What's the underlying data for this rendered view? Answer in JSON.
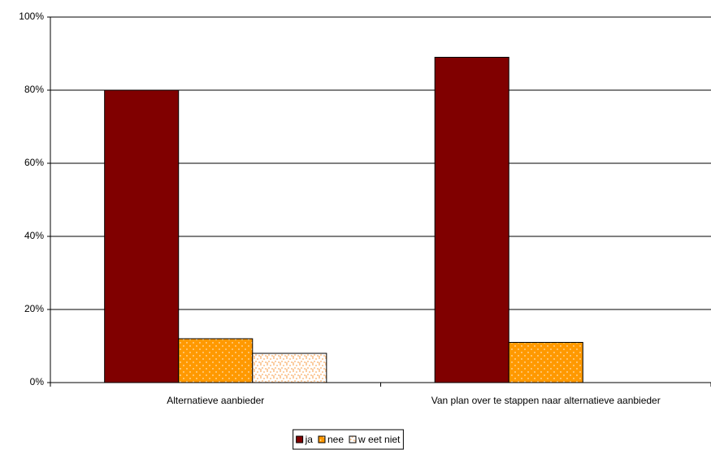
{
  "chart_data": {
    "type": "bar",
    "categories": [
      "Alternatieve aanbieder",
      "Van plan over te stappen naar alternatieve aanbieder"
    ],
    "series": [
      {
        "name": "ja",
        "color": "#800000",
        "values": [
          80,
          89
        ]
      },
      {
        "name": "nee",
        "color": "#ff9900",
        "values": [
          12,
          11
        ]
      },
      {
        "name": "w eet niet",
        "color": "#fbc99a",
        "values": [
          8,
          0
        ]
      }
    ],
    "ylim": [
      0,
      100
    ],
    "yticks": [
      {
        "value": 0,
        "label": "0%"
      },
      {
        "value": 20,
        "label": "20%"
      },
      {
        "value": 40,
        "label": "40%"
      },
      {
        "value": 60,
        "label": "60%"
      },
      {
        "value": 80,
        "label": "80%"
      },
      {
        "value": 100,
        "label": "100%"
      }
    ],
    "grid": true,
    "legend": "bottom"
  }
}
